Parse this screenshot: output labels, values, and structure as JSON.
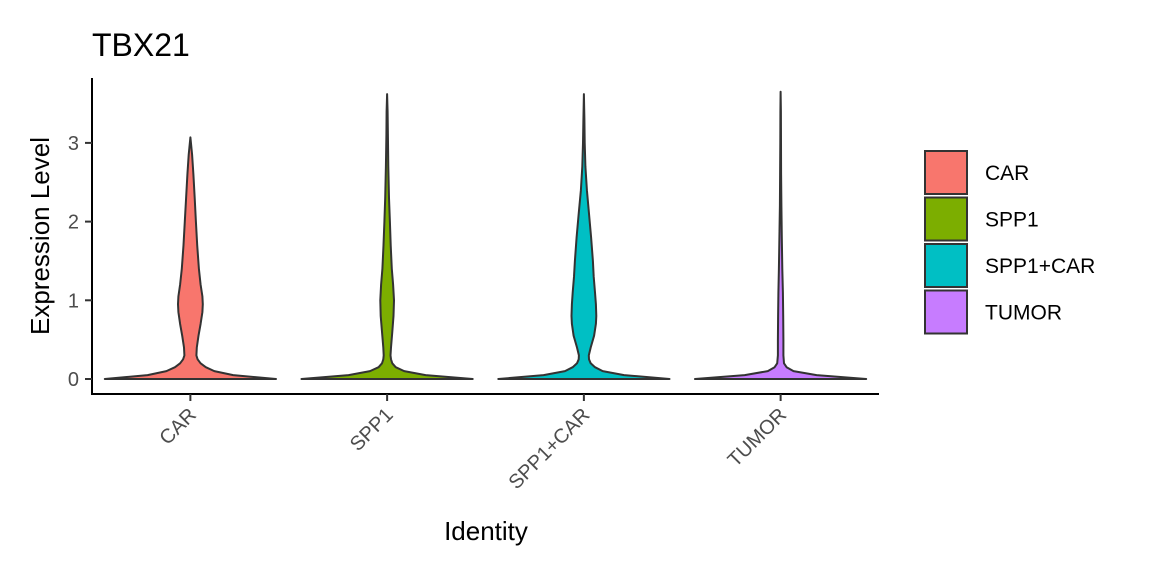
{
  "chart_data": {
    "type": "violin",
    "title": "TBX21",
    "xlabel": "Identity",
    "ylabel": "Expression Level",
    "ylim": [
      -0.18,
      3.78
    ],
    "yticks": [
      "0",
      "1",
      "2",
      "3"
    ],
    "ytick_values": [
      0,
      1,
      2,
      3
    ],
    "categories": [
      "CAR",
      "SPP1",
      "SPP1+CAR",
      "TUMOR"
    ],
    "grid": false,
    "legend_position": "right",
    "series": [
      {
        "name": "CAR",
        "color": "#F8766D",
        "max": 3.07,
        "profile": [
          [
            0,
            1.0
          ],
          [
            0.05,
            0.5
          ],
          [
            0.1,
            0.28
          ],
          [
            0.15,
            0.18
          ],
          [
            0.2,
            0.12
          ],
          [
            0.25,
            0.085
          ],
          [
            0.3,
            0.07
          ],
          [
            0.4,
            0.075
          ],
          [
            0.55,
            0.095
          ],
          [
            0.7,
            0.12
          ],
          [
            0.85,
            0.14
          ],
          [
            0.95,
            0.145
          ],
          [
            1.05,
            0.14
          ],
          [
            1.2,
            0.12
          ],
          [
            1.4,
            0.1
          ],
          [
            1.7,
            0.08
          ],
          [
            2.0,
            0.065
          ],
          [
            2.3,
            0.05
          ],
          [
            2.6,
            0.035
          ],
          [
            2.85,
            0.02
          ],
          [
            3.07,
            0.0
          ]
        ]
      },
      {
        "name": "SPP1",
        "color": "#7CAE00",
        "max": 3.62,
        "profile": [
          [
            0,
            1.0
          ],
          [
            0.05,
            0.45
          ],
          [
            0.1,
            0.2
          ],
          [
            0.15,
            0.1
          ],
          [
            0.2,
            0.06
          ],
          [
            0.25,
            0.045
          ],
          [
            0.3,
            0.04
          ],
          [
            0.4,
            0.045
          ],
          [
            0.6,
            0.06
          ],
          [
            0.8,
            0.075
          ],
          [
            1.0,
            0.08
          ],
          [
            1.2,
            0.07
          ],
          [
            1.4,
            0.055
          ],
          [
            1.7,
            0.042
          ],
          [
            2.0,
            0.032
          ],
          [
            2.3,
            0.022
          ],
          [
            2.7,
            0.014
          ],
          [
            3.1,
            0.009
          ],
          [
            3.4,
            0.006
          ],
          [
            3.62,
            0.0
          ]
        ]
      },
      {
        "name": "SPP1+CAR",
        "color": "#00BFC4",
        "max": 3.62,
        "profile": [
          [
            0,
            1.0
          ],
          [
            0.05,
            0.47
          ],
          [
            0.1,
            0.22
          ],
          [
            0.15,
            0.13
          ],
          [
            0.2,
            0.08
          ],
          [
            0.25,
            0.06
          ],
          [
            0.3,
            0.058
          ],
          [
            0.4,
            0.08
          ],
          [
            0.55,
            0.12
          ],
          [
            0.7,
            0.14
          ],
          [
            0.8,
            0.145
          ],
          [
            0.95,
            0.14
          ],
          [
            1.1,
            0.13
          ],
          [
            1.3,
            0.115
          ],
          [
            1.5,
            0.105
          ],
          [
            1.8,
            0.085
          ],
          [
            2.1,
            0.06
          ],
          [
            2.4,
            0.035
          ],
          [
            2.7,
            0.018
          ],
          [
            3.0,
            0.01
          ],
          [
            3.3,
            0.006
          ],
          [
            3.62,
            0.0
          ]
        ]
      },
      {
        "name": "TUMOR",
        "color": "#C77CFF",
        "max": 3.65,
        "profile": [
          [
            0,
            1.0
          ],
          [
            0.05,
            0.42
          ],
          [
            0.1,
            0.15
          ],
          [
            0.15,
            0.07
          ],
          [
            0.2,
            0.04
          ],
          [
            0.3,
            0.032
          ],
          [
            0.5,
            0.032
          ],
          [
            0.8,
            0.03
          ],
          [
            1.1,
            0.026
          ],
          [
            1.4,
            0.02
          ],
          [
            1.8,
            0.014
          ],
          [
            2.2,
            0.009
          ],
          [
            2.6,
            0.006
          ],
          [
            3.0,
            0.004
          ],
          [
            3.4,
            0.003
          ],
          [
            3.65,
            0.0
          ]
        ]
      }
    ]
  }
}
